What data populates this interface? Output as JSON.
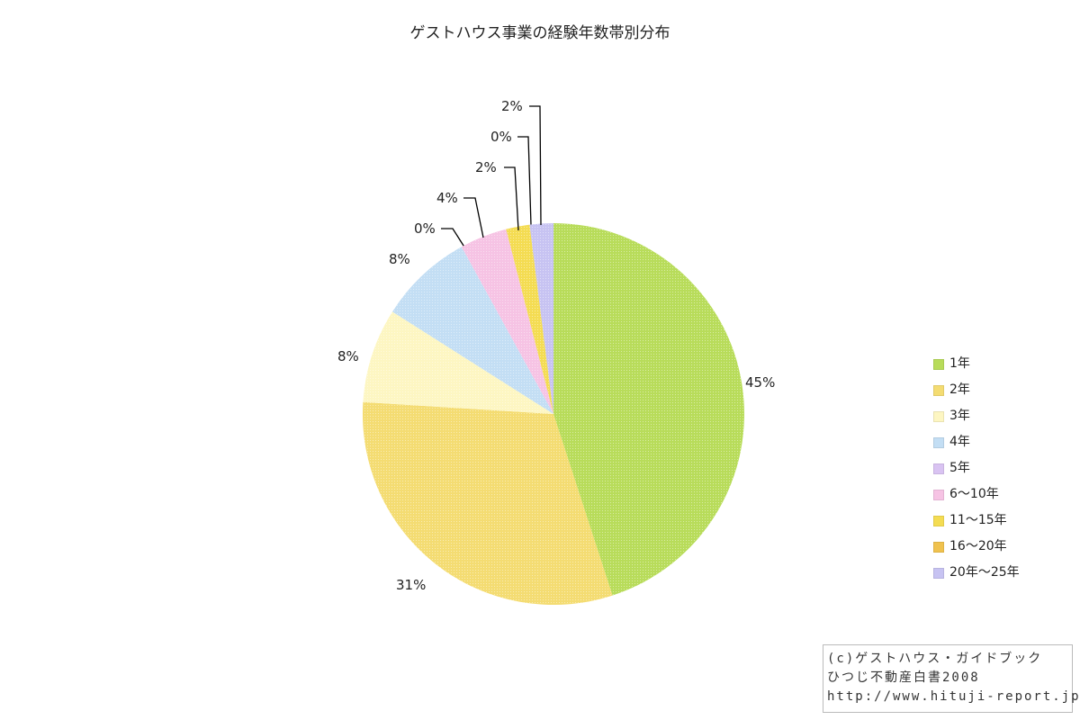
{
  "chart_data": {
    "type": "pie",
    "title": "ゲストハウス事業の経験年数帯別分布",
    "start_angle_deg": 0,
    "direction": "clockwise",
    "slices": [
      {
        "name": "1年",
        "value": 45,
        "label": "45%",
        "color": "#b8dc5a"
      },
      {
        "name": "2年",
        "value": 31,
        "label": "31%",
        "color": "#f4dc72"
      },
      {
        "name": "3年",
        "value": 8,
        "label": "8%",
        "color": "#fdf6c2"
      },
      {
        "name": "4年",
        "value": 8,
        "label": "8%",
        "color": "#c3def4"
      },
      {
        "name": "5年",
        "value": 0,
        "label": "0%",
        "color": "#d9c3f2"
      },
      {
        "name": "6〜10年",
        "value": 4,
        "label": "4%",
        "color": "#f6c3e4"
      },
      {
        "name": "11〜15年",
        "value": 2,
        "label": "2%",
        "color": "#f4dc52"
      },
      {
        "name": "16〜20年",
        "value": 0,
        "label": "0%",
        "color": "#f0c24e"
      },
      {
        "name": "20年〜25年",
        "value": 2,
        "label": "2%",
        "color": "#c7c3f2"
      }
    ],
    "legend": {
      "position": "right"
    }
  },
  "credit": {
    "line1": "(c)ゲストハウス・ガイドブック",
    "line2": "ひつじ不動産白書2008",
    "line3": "http://www.hituji-report.jp/"
  }
}
